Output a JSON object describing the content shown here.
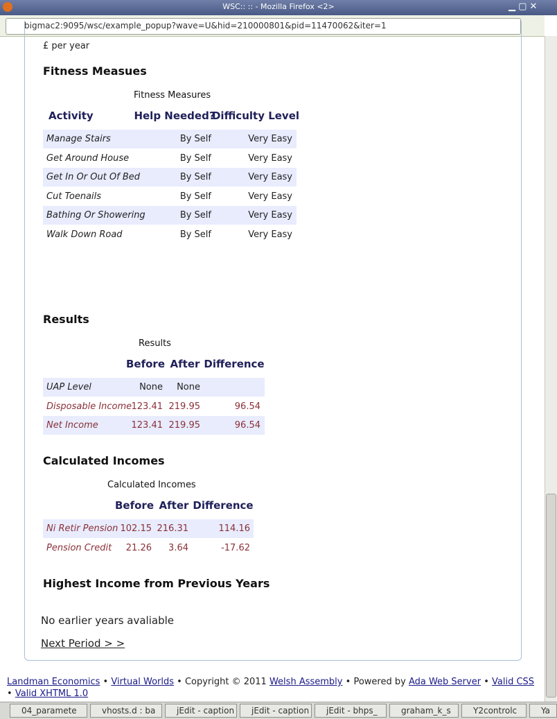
{
  "window": {
    "title": "WSC::  :: - Mozilla Firefox <2>",
    "url": "bigmac2:9095/wsc/example_popup?wave=U&hid=210000801&pid=11470062&iter=1"
  },
  "content": {
    "unit_note": "£ per year",
    "fitness": {
      "heading": "Fitness Measues",
      "caption": "Fitness Measures",
      "headers": [
        "Activity",
        "Help Needed?",
        "Difficulty Level"
      ],
      "rows": [
        [
          "Manage Stairs",
          "By Self",
          "Very Easy"
        ],
        [
          "Get Around House",
          "By Self",
          "Very Easy"
        ],
        [
          "Get In Or Out Of Bed",
          "By Self",
          "Very Easy"
        ],
        [
          "Cut Toenails",
          "By Self",
          "Very Easy"
        ],
        [
          "Bathing Or Showering",
          "By Self",
          "Very Easy"
        ],
        [
          "Walk Down Road",
          "By Self",
          "Very Easy"
        ]
      ]
    },
    "results": {
      "heading": "Results",
      "caption": "Results",
      "headers": [
        "Before",
        "After",
        "Difference"
      ],
      "rows": [
        [
          "UAP Level",
          "None",
          "None"
        ],
        [
          "Disposable Income",
          "123.41",
          "219.95",
          "96.54"
        ],
        [
          "Net Income",
          "123.41",
          "219.95",
          "96.54"
        ]
      ]
    },
    "incomes": {
      "heading": "Calculated Incomes",
      "caption": "Calculated Incomes",
      "headers": [
        "Before",
        "After",
        "Difference"
      ],
      "rows": [
        [
          "Ni Retir Pension",
          "102.15",
          "216.31",
          "114.16"
        ],
        [
          "Pension Credit",
          "21.26",
          "3.64",
          "-17.62"
        ]
      ]
    },
    "previous": {
      "heading": "Highest Income from Previous Years",
      "message": "No earlier years avaliable"
    },
    "next_link": "Next Period > >"
  },
  "footer": [
    {
      "text": "Landman Economics",
      "link": true
    },
    {
      "text": "•"
    },
    {
      "text": "Virtual Worlds",
      "link": true
    },
    {
      "text": "•"
    },
    {
      "text": "Copyright © 2011"
    },
    {
      "text": "Welsh Assembly",
      "link": true
    },
    {
      "text": "•"
    },
    {
      "text": "Powered by"
    },
    {
      "text": "Ada Web Server",
      "link": true
    },
    {
      "text": "•"
    },
    {
      "text": "Valid CSS",
      "link": true
    },
    {
      "text": "•"
    },
    {
      "text": "Valid XHTML 1.0",
      "link": true
    }
  ],
  "taskbar": [
    "04_paramete",
    "vhosts.d : ba",
    "jEdit - caption",
    "jEdit - caption",
    "jEdit - bhps_",
    "graham_k_s",
    "Y2controlc",
    "Ya"
  ]
}
